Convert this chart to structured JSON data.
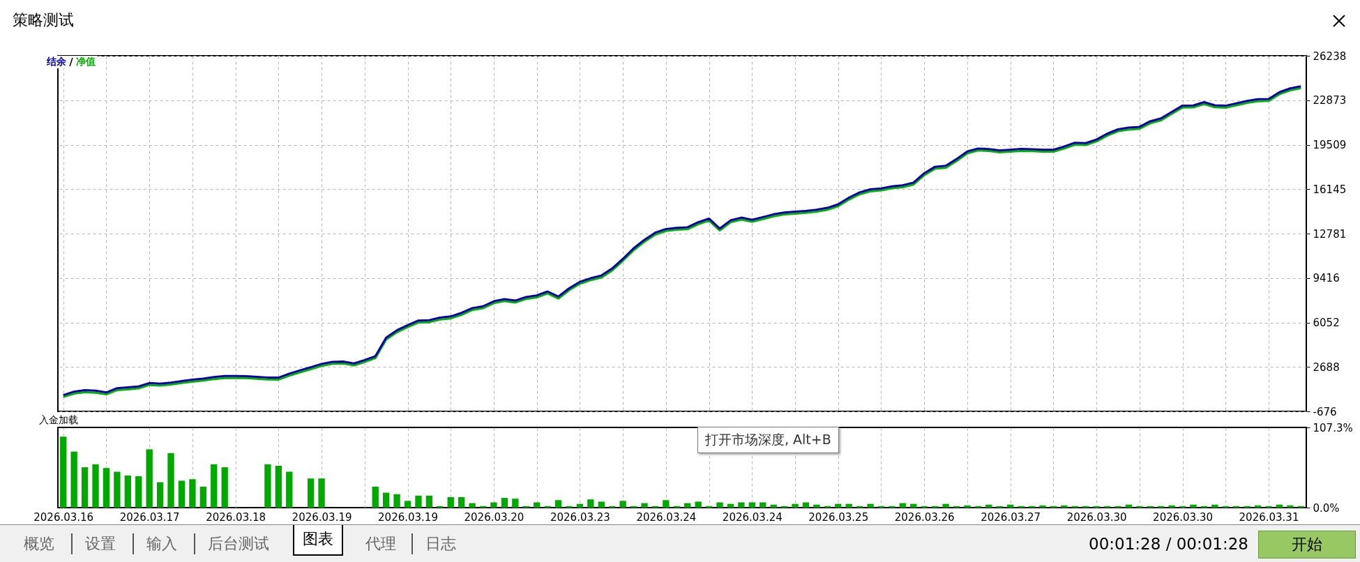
{
  "chart_data": [
    {
      "type": "line",
      "title": "策略测试",
      "legend": "top left",
      "grid": true,
      "tick_labels": "y",
      "categories": [
        "2026.03.16",
        null,
        null,
        null,
        null,
        null,
        null,
        null,
        "2026.03.17",
        null,
        null,
        null,
        null,
        null,
        null,
        null,
        "2026.03.18",
        null,
        null,
        null,
        null,
        null,
        null,
        null,
        "2026.03.19",
        null,
        null,
        null,
        null,
        null,
        null,
        null,
        "2026.03.19",
        null,
        null,
        null,
        null,
        null,
        null,
        null,
        "2026.03.20",
        null,
        null,
        null,
        null,
        null,
        null,
        null,
        "2026.03.23",
        null,
        null,
        null,
        null,
        null,
        null,
        null,
        "2026.03.24",
        null,
        null,
        null,
        null,
        null,
        null,
        null,
        "2026.03.24",
        null,
        null,
        null,
        null,
        null,
        null,
        null,
        "2026.03.25",
        null,
        null,
        null,
        null,
        null,
        null,
        null,
        "2026.03.26",
        null,
        null,
        null,
        null,
        null,
        null,
        null,
        "2026.03.27",
        null,
        null,
        null,
        null,
        null,
        null,
        null,
        "2026.03.30",
        null,
        null,
        null,
        null,
        null,
        null,
        null,
        "2026.03.30",
        null,
        null,
        null,
        null,
        null,
        null,
        null,
        "2026.03.31",
        null,
        null,
        null
      ],
      "series": [
        {
          "name": "净值",
          "color": "#00b000",
          "values": [
            410,
            670,
            780,
            740,
            610,
            930,
            990,
            1060,
            1320,
            1270,
            1350,
            1470,
            1570,
            1660,
            1770,
            1850,
            1850,
            1840,
            1790,
            1740,
            1730,
            2030,
            2280,
            2520,
            2770,
            2920,
            2950,
            2800,
            3060,
            3350,
            4760,
            5310,
            5700,
            6050,
            6070,
            6270,
            6360,
            6630,
            6990,
            7130,
            7510,
            7670,
            7560,
            7830,
            7950,
            8250,
            7860,
            8490,
            8980,
            9250,
            9460,
            9990,
            10720,
            11520,
            12160,
            12700,
            12980,
            13070,
            13110,
            13490,
            13770,
            13010,
            13630,
            13840,
            13670,
            13880,
            14090,
            14230,
            14290,
            14350,
            14440,
            14580,
            14850,
            15350,
            15750,
            15980,
            16050,
            16210,
            16290,
            16490,
            17200,
            17690,
            17760,
            18270,
            18850,
            19070,
            19030,
            18930,
            18980,
            19040,
            19020,
            18980,
            18980,
            19220,
            19510,
            19480,
            19750,
            20190,
            20520,
            20650,
            20710,
            21130,
            21350,
            21840,
            22320,
            22330,
            22580,
            22340,
            22310,
            22490,
            22670,
            22800,
            22820,
            23330,
            23620,
            23780
          ]
        },
        {
          "name": "结余",
          "color": "#0000a8",
          "values": [
            560,
            820,
            930,
            890,
            760,
            1080,
            1140,
            1210,
            1470,
            1420,
            1500,
            1620,
            1720,
            1810,
            1920,
            2000,
            2000,
            1990,
            1940,
            1890,
            1880,
            2180,
            2430,
            2670,
            2920,
            3070,
            3100,
            2950,
            3210,
            3500,
            4910,
            5460,
            5850,
            6200,
            6220,
            6420,
            6510,
            6780,
            7140,
            7280,
            7660,
            7820,
            7710,
            7980,
            8100,
            8400,
            8010,
            8640,
            9130,
            9400,
            9610,
            10140,
            10870,
            11670,
            12310,
            12850,
            13130,
            13220,
            13260,
            13640,
            13920,
            13160,
            13780,
            13990,
            13820,
            14030,
            14240,
            14380,
            14440,
            14500,
            14590,
            14730,
            15000,
            15500,
            15900,
            16130,
            16200,
            16360,
            16440,
            16640,
            17350,
            17840,
            17910,
            18420,
            19000,
            19220,
            19180,
            19080,
            19130,
            19190,
            19170,
            19130,
            19130,
            19370,
            19660,
            19630,
            19900,
            20340,
            20670,
            20800,
            20860,
            21280,
            21500,
            21990,
            22470,
            22480,
            22730,
            22490,
            22460,
            22640,
            22820,
            22950,
            22970,
            23480,
            23770,
            23930
          ]
        }
      ],
      "ylim": [
        -676,
        26238
      ],
      "yticks": [
        -676,
        2688,
        6052,
        9416,
        12781,
        16145,
        19509,
        22873,
        26238
      ],
      "annotations": [
        "概览",
        "设置",
        "输入",
        "后台测试",
        "图表",
        "代理",
        "日志",
        "00:01:28 / 00:01:28",
        "开始",
        "打开市场深度, Alt+B"
      ]
    },
    {
      "type": "bar",
      "title": "入金加载",
      "grid": "x",
      "color": "#00a800",
      "categories": [
        "2026.03.16",
        null,
        null,
        null,
        null,
        null,
        null,
        null,
        "2026.03.17",
        null,
        null,
        null,
        null,
        null,
        null,
        null,
        "2026.03.18",
        null,
        null,
        null,
        null,
        null,
        null,
        null,
        "2026.03.19",
        null,
        null,
        null,
        null,
        null,
        null,
        null,
        "2026.03.19",
        null,
        null,
        null,
        null,
        null,
        null,
        null,
        "2026.03.20",
        null,
        null,
        null,
        null,
        null,
        null,
        null,
        "2026.03.23",
        null,
        null,
        null,
        null,
        null,
        null,
        null,
        "2026.03.24",
        null,
        null,
        null,
        null,
        null,
        null,
        null,
        "2026.03.24",
        null,
        null,
        null,
        null,
        null,
        null,
        null,
        "2026.03.25",
        null,
        null,
        null,
        null,
        null,
        null,
        null,
        "2026.03.26",
        null,
        null,
        null,
        null,
        null,
        null,
        null,
        "2026.03.27",
        null,
        null,
        null,
        null,
        null,
        null,
        null,
        "2026.03.30",
        null,
        null,
        null,
        null,
        null,
        null,
        null,
        "2026.03.30",
        null,
        null,
        null,
        null,
        null,
        null,
        null,
        "2026.03.31",
        null,
        null,
        null
      ],
      "values": [
        95,
        75,
        54,
        58,
        53,
        48,
        43,
        42,
        78,
        34,
        73,
        36,
        38,
        28,
        58,
        54,
        null,
        null,
        null,
        58,
        56,
        48,
        null,
        39,
        39,
        null,
        null,
        null,
        null,
        28,
        20,
        18,
        9,
        16,
        16,
        2,
        14,
        14,
        6,
        2,
        7,
        13,
        12,
        2,
        7,
        2,
        10,
        2,
        5,
        11,
        8,
        2,
        9,
        2,
        6,
        2,
        10,
        2,
        6,
        8,
        2,
        7,
        5,
        7,
        7,
        7,
        4,
        2,
        5,
        7,
        4,
        2,
        5,
        5,
        2,
        5,
        2,
        2,
        6,
        5,
        2,
        2,
        5,
        2,
        3,
        2,
        4,
        2,
        4,
        2,
        2,
        3,
        2,
        3,
        2,
        2,
        2,
        2,
        2,
        4,
        2,
        2,
        2,
        3,
        2,
        4,
        2,
        4,
        2,
        2,
        2,
        3,
        2,
        4,
        3,
        2
      ],
      "ylim": [
        0,
        107.3
      ],
      "yticks": [
        {
          "value": 0,
          "label": "0.0%"
        },
        {
          "value": 107.3,
          "label": "107.3%"
        }
      ]
    }
  ]
}
